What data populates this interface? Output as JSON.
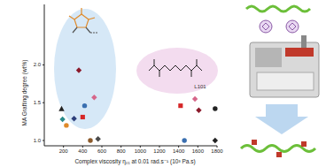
{
  "chart_data": {
    "type": "scatter",
    "x_label": "Complex viscosity η₀₁ at 0.01 rad.s⁻¹ (10³ Pa.s)",
    "y_label": "MA Grafting degree (wt%)",
    "annotations": [
      "L101"
    ],
    "xlim": [
      0,
      1800
    ],
    "xticks": [
      200,
      400,
      600,
      800,
      1000,
      1200,
      1400,
      1600,
      1800
    ],
    "ylim": [
      0.93,
      2.8
    ],
    "yticks": [
      {
        "value": 1,
        "label": "1.0"
      },
      {
        "value": 1.5,
        "label": "1.5"
      },
      {
        "value": 2,
        "label": "2.0"
      }
    ],
    "grid": false,
    "series": [
      {
        "marker": "diamond",
        "x": [
          360,
          520,
          190,
          310,
          560,
          1570,
          1610,
          1780
        ],
        "values": [
          1.93,
          1.57,
          1.28,
          1.29,
          1.02,
          1.55,
          1.4,
          1.0
        ],
        "colors": [
          "#8b1a2b",
          "#d6668a",
          "#2a8c8c",
          "#2c3e7a",
          "#4a4a4a",
          "#d6668a",
          "#8b1a2b",
          "#222222"
        ]
      },
      {
        "marker": "circle",
        "x": [
          420,
          230,
          480,
          1780,
          1460
        ],
        "values": [
          1.46,
          1.2,
          1.0,
          1.42,
          1.0
        ],
        "colors": [
          "#3a6fb0",
          "#e08a2a",
          "#8b5a2b",
          "#222222",
          "#3a6fb0"
        ]
      },
      {
        "marker": "square",
        "x": [
          400,
          1420
        ],
        "values": [
          1.31,
          1.46
        ],
        "colors": [
          "#d62728",
          "#d62728"
        ]
      },
      {
        "marker": "triangle",
        "x": [
          180
        ],
        "values": [
          1.42
        ],
        "colors": [
          "#222222"
        ]
      }
    ]
  }
}
